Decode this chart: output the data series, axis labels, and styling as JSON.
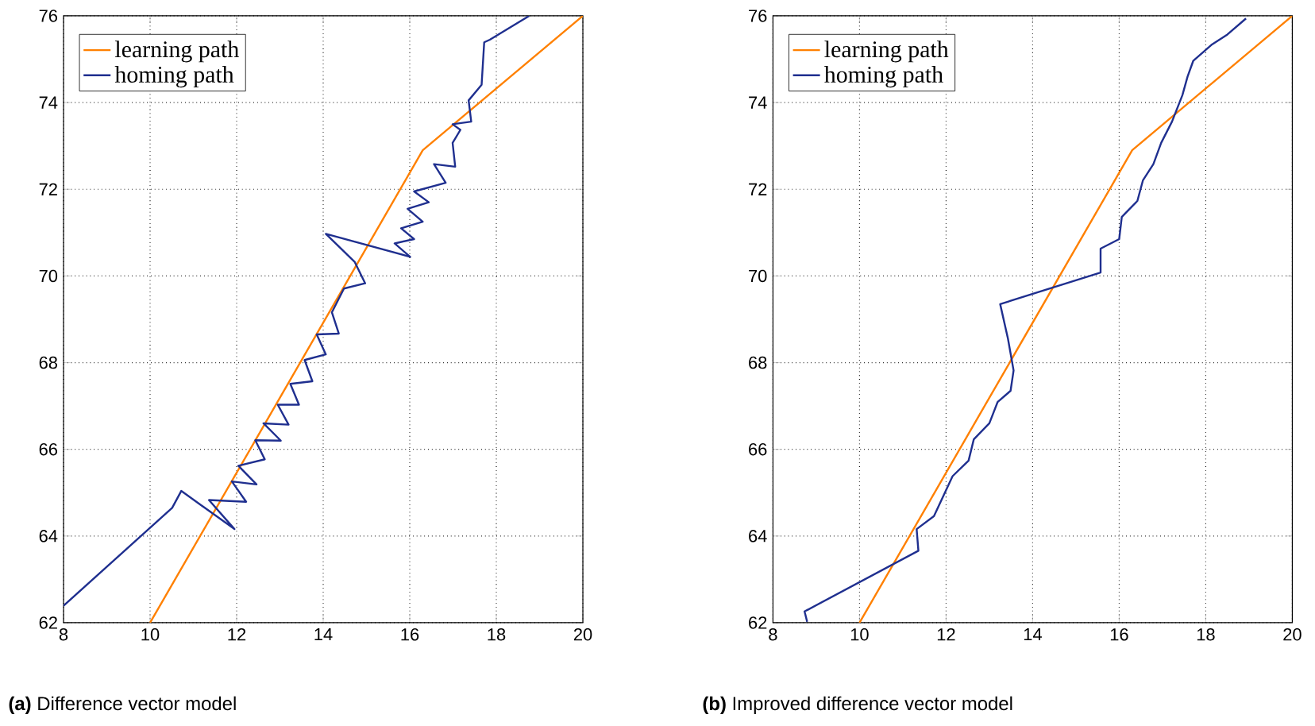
{
  "chart_data": [
    {
      "type": "line",
      "title": "**(a)** Difference vector model",
      "xlim": [
        8,
        20
      ],
      "ylim": [
        62,
        76
      ],
      "xticks": [
        8,
        10,
        12,
        14,
        16,
        18,
        20
      ],
      "yticks": [
        62,
        64,
        66,
        68,
        70,
        72,
        74,
        76
      ],
      "grid": true,
      "legend": "top left",
      "line_style": "solid",
      "marker": "none",
      "series": [
        {
          "name": "learning path",
          "color": "#ff8000",
          "x": [
            10,
            16.3,
            20
          ],
          "values": [
            62,
            72.9,
            76
          ]
        },
        {
          "name": "homing path",
          "color": "#1f2f8f",
          "x": [
            8,
            10.51,
            10.72,
            11.95,
            11.36,
            12.22,
            11.89,
            12.46,
            12.04,
            12.65,
            12.43,
            13.02,
            12.62,
            13.2,
            12.95,
            13.44,
            13.24,
            13.75,
            13.57,
            14.06,
            13.85,
            14.36,
            14.2,
            14.48,
            14.97,
            14.73,
            14.06,
            16.01,
            15.65,
            16.1,
            15.8,
            16.3,
            15.95,
            16.44,
            16.1,
            16.83,
            16.56,
            17.05,
            16.99,
            17.17,
            16.99,
            17.42,
            17.36,
            17.66,
            17.72,
            17.85,
            18.76
          ],
          "values": [
            62.39,
            64.65,
            65.04,
            64.16,
            64.83,
            64.79,
            65.26,
            65.19,
            65.62,
            65.77,
            66.21,
            66.2,
            66.6,
            66.57,
            67.03,
            67.03,
            67.51,
            67.57,
            68.06,
            68.19,
            68.65,
            68.67,
            69.16,
            69.71,
            69.83,
            70.32,
            70.97,
            70.44,
            70.75,
            70.85,
            71.1,
            71.25,
            71.55,
            71.7,
            71.95,
            72.15,
            72.58,
            72.52,
            73.07,
            73.37,
            73.5,
            73.56,
            74.05,
            74.41,
            75.39,
            75.45,
            76
          ]
        }
      ]
    },
    {
      "type": "line",
      "title": "**(b)** Improved difference vector model",
      "xlim": [
        8,
        20
      ],
      "ylim": [
        62,
        76
      ],
      "xticks": [
        8,
        10,
        12,
        14,
        16,
        18,
        20
      ],
      "yticks": [
        62,
        64,
        66,
        68,
        70,
        72,
        74,
        76
      ],
      "grid": true,
      "legend": "top left",
      "line_style": "solid",
      "marker": "none",
      "series": [
        {
          "name": "learning path",
          "color": "#ff8000",
          "x": [
            10,
            16.3,
            20
          ],
          "values": [
            62,
            72.9,
            76
          ]
        },
        {
          "name": "homing path",
          "color": "#1f2f8f",
          "x": [
            8.79,
            8.73,
            11.36,
            11.32,
            11.72,
            12.15,
            12.52,
            12.64,
            13.0,
            13.19,
            13.49,
            13.56,
            13.43,
            13.25,
            15.57,
            15.57,
            16.0,
            16.06,
            16.42,
            16.55,
            16.79,
            16.97,
            17.22,
            17.46,
            17.58,
            17.71,
            18.13,
            18.5,
            18.93
          ],
          "values": [
            62.02,
            62.26,
            63.66,
            64.16,
            64.46,
            65.38,
            65.74,
            66.23,
            66.6,
            67.09,
            67.35,
            67.82,
            68.55,
            69.35,
            70.08,
            70.63,
            70.85,
            71.36,
            71.73,
            72.21,
            72.58,
            73.07,
            73.56,
            74.17,
            74.6,
            74.96,
            75.33,
            75.57,
            75.94
          ]
        }
      ]
    }
  ]
}
